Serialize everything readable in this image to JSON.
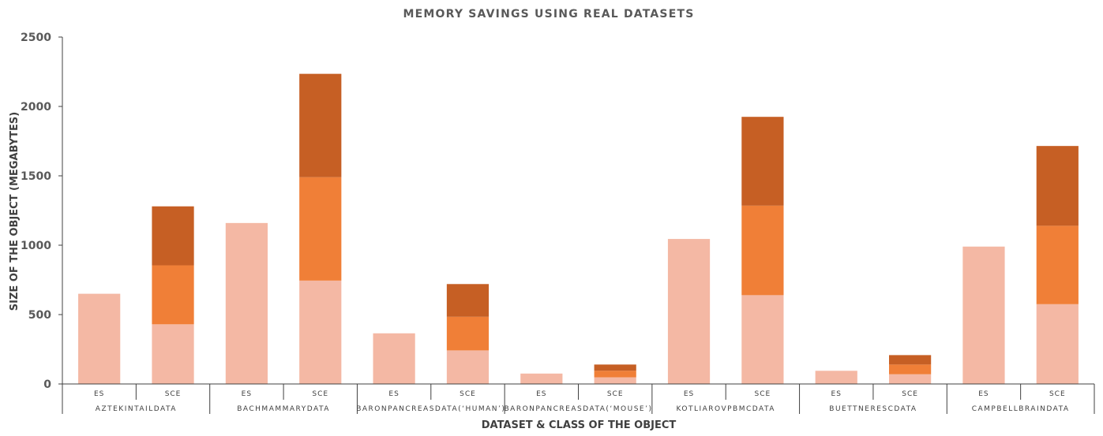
{
  "chart_data": {
    "type": "bar",
    "stacked": true,
    "title": "MEMORY SAVINGS USING REAL DATASETS",
    "xlabel": "DATASET & CLASS OF THE OBJECT",
    "ylabel": "SIZE OF THE OBJECT (MEGABYTES)",
    "ylim": [
      0,
      2500
    ],
    "yticks": [
      0,
      500,
      1000,
      1500,
      2000,
      2500
    ],
    "grid": false,
    "legend": "none",
    "groups": [
      {
        "dataset": "AZTEKINTAILDATA",
        "bars": [
          {
            "class": "ES",
            "values": [
              650,
              0,
              0
            ]
          },
          {
            "class": "SCE",
            "values": [
              430,
              425,
              425
            ]
          }
        ]
      },
      {
        "dataset": "BACHMAMMARYDATA",
        "bars": [
          {
            "class": "ES",
            "values": [
              1160,
              0,
              0
            ]
          },
          {
            "class": "SCE",
            "values": [
              745,
              745,
              745
            ]
          }
        ]
      },
      {
        "dataset": "BARONPANCREASDATA(‘HUMAN’)",
        "bars": [
          {
            "class": "ES",
            "values": [
              365,
              0,
              0
            ]
          },
          {
            "class": "SCE",
            "values": [
              242,
              242,
              236
            ]
          }
        ]
      },
      {
        "dataset": "BARONPANCREASDATA(‘MOUSE’)",
        "bars": [
          {
            "class": "ES",
            "values": [
              75,
              0,
              0
            ]
          },
          {
            "class": "SCE",
            "values": [
              48,
              47,
              45
            ]
          }
        ]
      },
      {
        "dataset": "KOTLIAROVPBMCDATA",
        "bars": [
          {
            "class": "ES",
            "values": [
              1045,
              0,
              0
            ]
          },
          {
            "class": "SCE",
            "values": [
              640,
              645,
              640
            ]
          }
        ]
      },
      {
        "dataset": "BUETTNERESCDATA",
        "bars": [
          {
            "class": "ES",
            "values": [
              95,
              0,
              0
            ]
          },
          {
            "class": "SCE",
            "values": [
              70,
              70,
              68
            ]
          }
        ]
      },
      {
        "dataset": "CAMPBELLBRAINDATA",
        "bars": [
          {
            "class": "ES",
            "values": [
              990,
              0,
              0
            ]
          },
          {
            "class": "SCE",
            "values": [
              575,
              565,
              575
            ]
          }
        ]
      }
    ],
    "colors": [
      "#f4b8a4",
      "#f07f37",
      "#c65f24"
    ]
  }
}
